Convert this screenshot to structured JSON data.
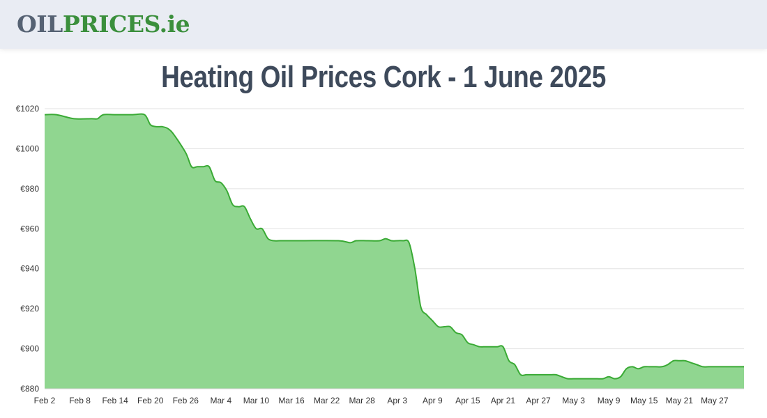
{
  "header": {
    "logo_part1": "OIL",
    "logo_part2": "PRICES.ie"
  },
  "colors": {
    "logo_gray": "#566273",
    "logo_green": "#3b8f3c",
    "line": "#3aaa35",
    "fill": "#90d690",
    "title": "#3e4a5b",
    "grid": "#e2e2e2"
  },
  "chart_data": {
    "type": "area",
    "title": "Heating Oil Prices Cork - 1 June 2025",
    "xlabel": "",
    "ylabel": "",
    "ylim": [
      880,
      1020
    ],
    "y_ticks": [
      "€1020",
      "€1000",
      "€980",
      "€960",
      "€940",
      "€920",
      "€900",
      "€880"
    ],
    "y_tick_values": [
      1020,
      1000,
      980,
      960,
      940,
      920,
      900,
      880
    ],
    "x_ticks": [
      "Feb 2",
      "Feb 8",
      "Feb 14",
      "Feb 20",
      "Feb 26",
      "Mar 4",
      "Mar 10",
      "Mar 16",
      "Mar 22",
      "Mar 28",
      "Apr 3",
      "Apr 9",
      "Apr 15",
      "Apr 21",
      "Apr 27",
      "May 3",
      "May 9",
      "May 15",
      "May 21",
      "May 27"
    ],
    "grid": true,
    "series": [
      {
        "x": [
          "Feb 2",
          "Feb 4",
          "Feb 7",
          "Feb 10",
          "Feb 11",
          "Feb 12",
          "Feb 14",
          "Feb 17",
          "Feb 19",
          "Feb 20",
          "Feb 21",
          "Feb 22",
          "Feb 23",
          "Feb 24",
          "Feb 26",
          "Feb 27",
          "Feb 28",
          "Mar 1",
          "Mar 2",
          "Mar 3",
          "Mar 4",
          "Mar 5",
          "Mar 6",
          "Mar 7",
          "Mar 8",
          "Mar 9",
          "Mar 10",
          "Mar 11",
          "Mar 12",
          "Mar 13",
          "Mar 14",
          "Mar 15",
          "Mar 16",
          "Mar 18",
          "Mar 24",
          "Mar 26",
          "Mar 27",
          "Mar 29",
          "Mar 31",
          "Apr 1",
          "Apr 2",
          "Apr 3",
          "Apr 4",
          "Apr 5",
          "Apr 6",
          "Apr 7",
          "Apr 8",
          "Apr 9",
          "Apr 10",
          "Apr 11",
          "Apr 12",
          "Apr 13",
          "Apr 14",
          "Apr 15",
          "Apr 16",
          "Apr 17",
          "Apr 18",
          "Apr 19",
          "Apr 20",
          "Apr 21",
          "Apr 22",
          "Apr 23",
          "Apr 24",
          "Apr 25",
          "Apr 26",
          "Apr 29",
          "Apr 30",
          "May 1",
          "May 2",
          "May 3",
          "May 4",
          "May 5",
          "May 6",
          "May 7",
          "May 8",
          "May 9",
          "May 10",
          "May 11",
          "May 12",
          "May 13",
          "May 14",
          "May 15",
          "May 16",
          "May 17",
          "May 18",
          "May 19",
          "May 20",
          "May 21",
          "May 22",
          "May 23",
          "May 24",
          "May 25",
          "May 26",
          "May 27",
          "May 28",
          "May 29",
          "May 30",
          "May 31",
          "Jun 1"
        ],
        "y": [
          1017,
          1017,
          1015,
          1015,
          1015,
          1017,
          1017,
          1017,
          1017,
          1012,
          1011,
          1011,
          1010,
          1007,
          998,
          991,
          991,
          991,
          991,
          984,
          983,
          979,
          972,
          971,
          971,
          965,
          960,
          960,
          955,
          954,
          954,
          954,
          954,
          954,
          954,
          953,
          954,
          954,
          954,
          955,
          954,
          954,
          954,
          953,
          940,
          921,
          917,
          914,
          911,
          911,
          911,
          908,
          907,
          903,
          902,
          901,
          901,
          901,
          901,
          901,
          894,
          892,
          887,
          887,
          887,
          887,
          887,
          886,
          885,
          885,
          885,
          885,
          885,
          885,
          885,
          886,
          885,
          886,
          890,
          891,
          890,
          891,
          891,
          891,
          891,
          892,
          894,
          894,
          894,
          893,
          892,
          891,
          891,
          891,
          891,
          891,
          891,
          891,
          891
        ]
      }
    ]
  }
}
